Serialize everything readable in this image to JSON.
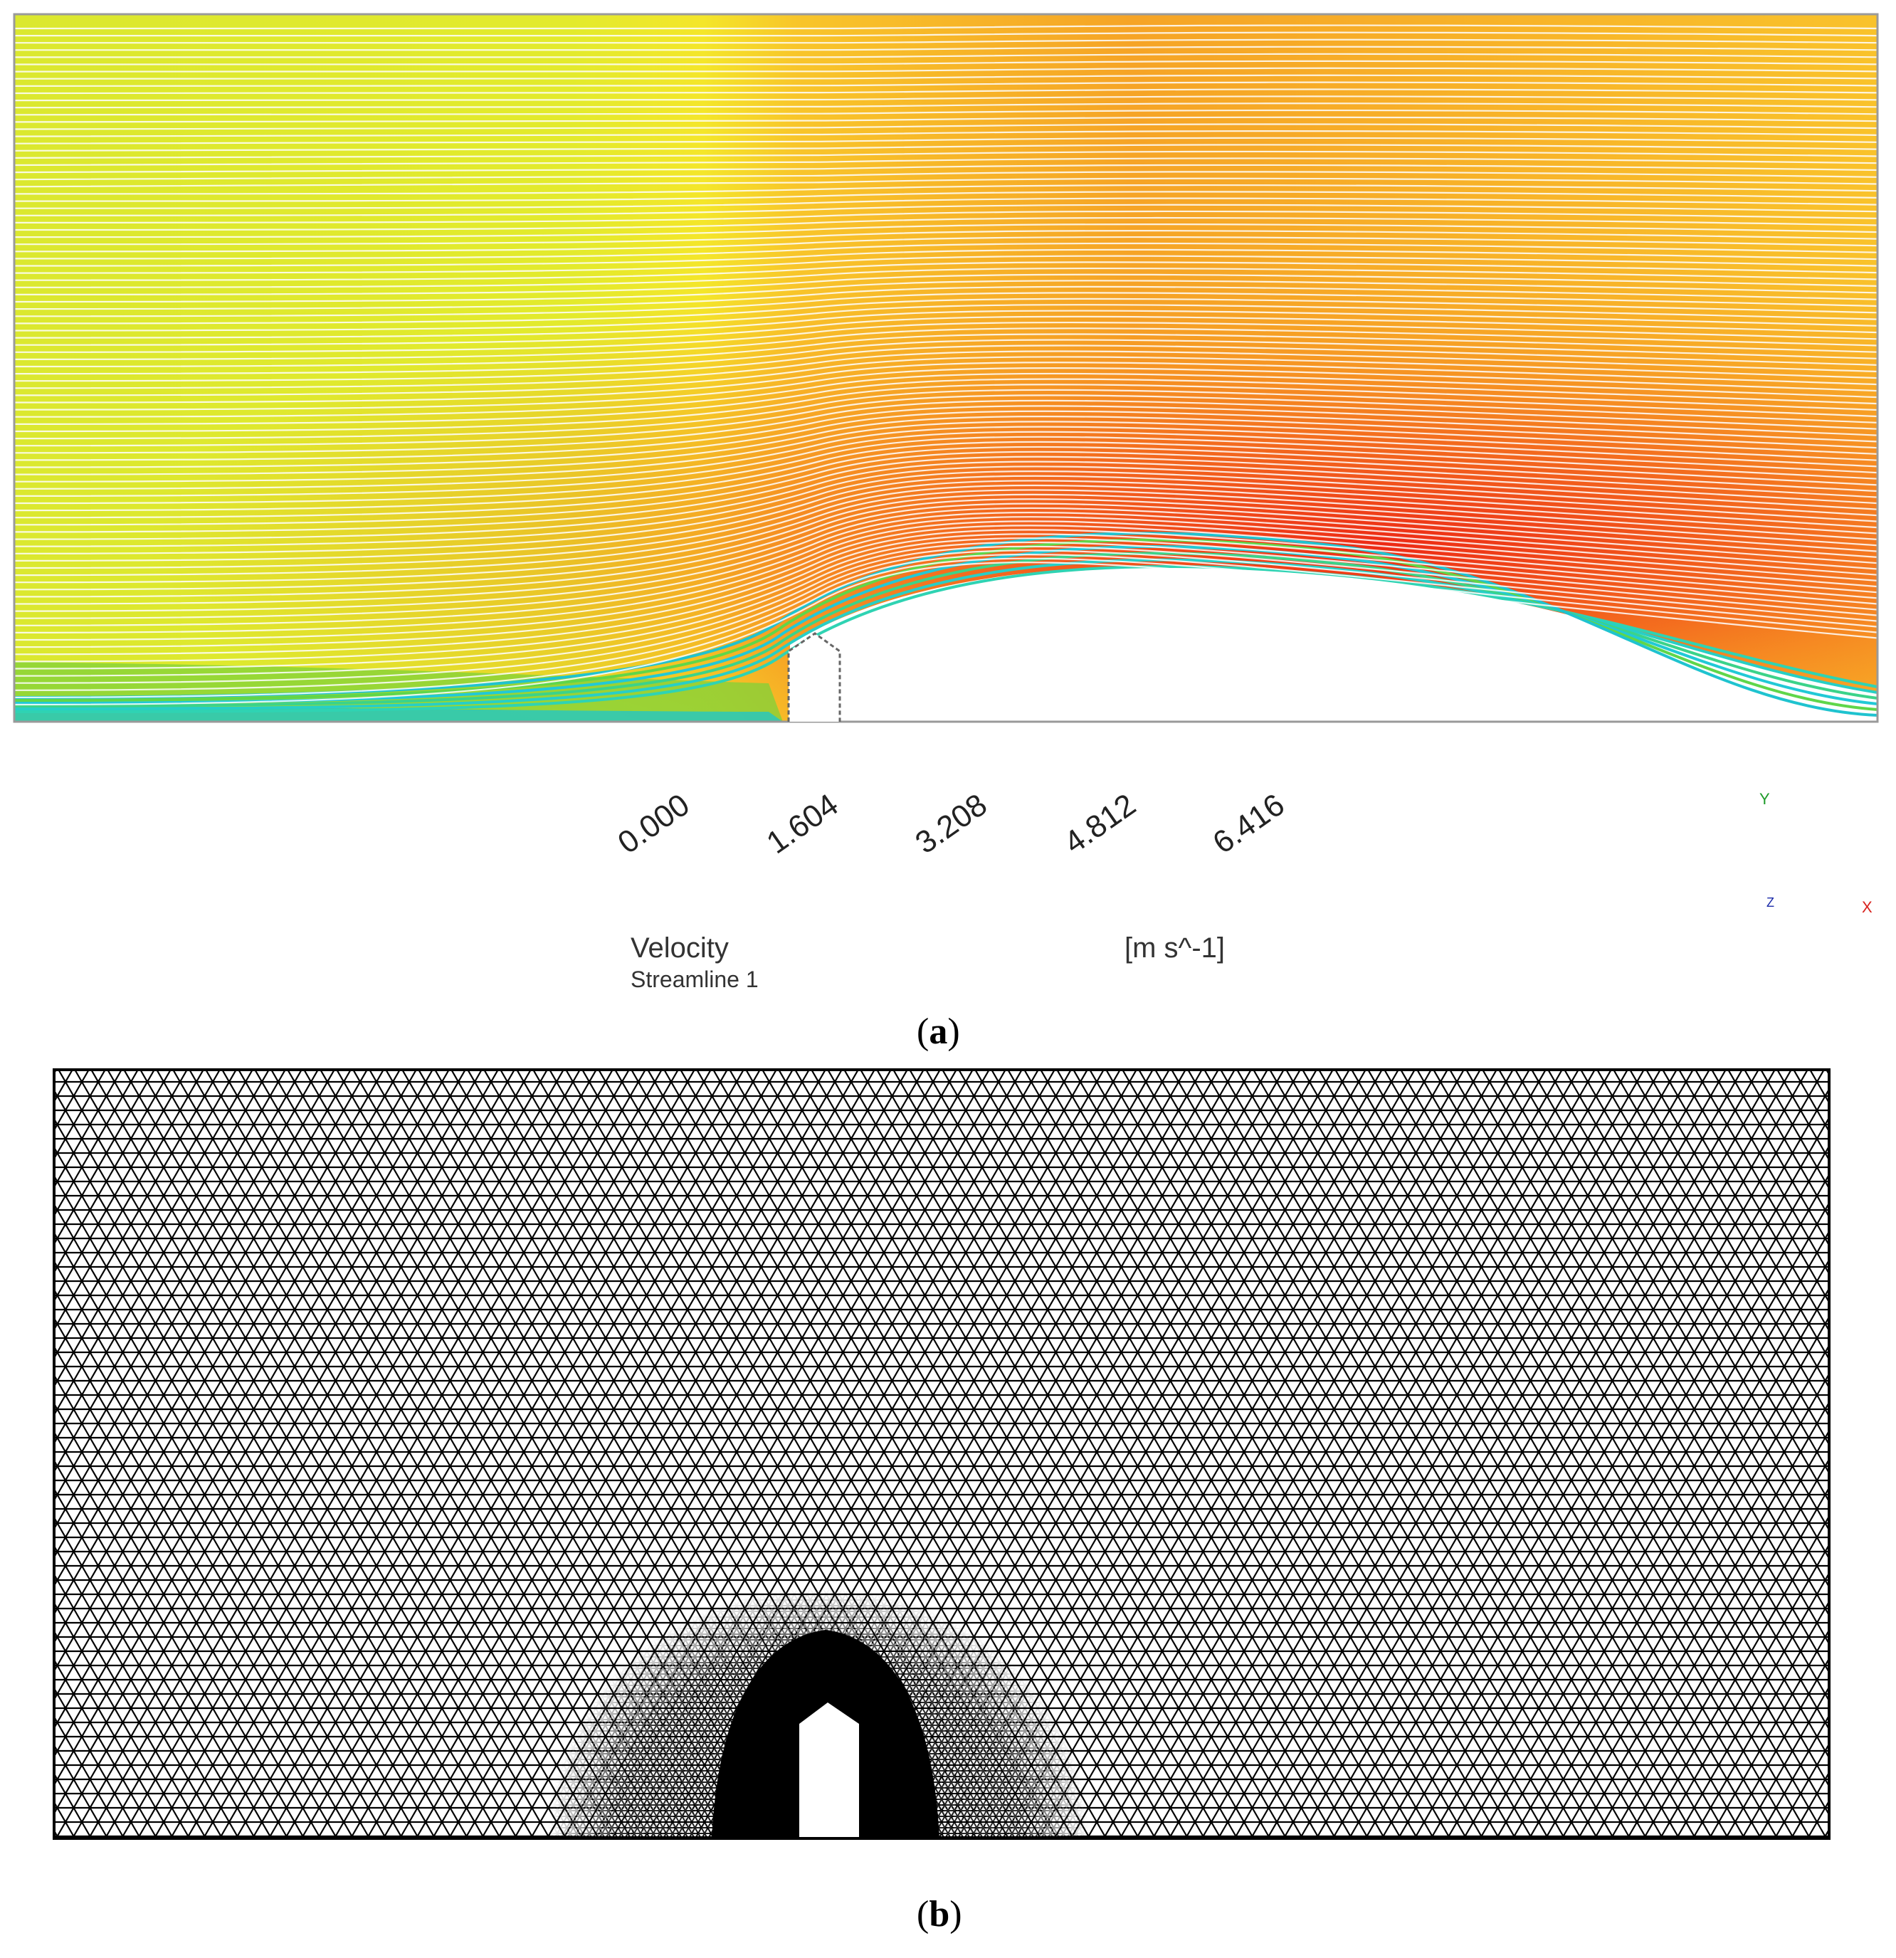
{
  "panel_a": {
    "caption_letter": "a",
    "legend": {
      "ticks": [
        "0.000",
        "1.604",
        "3.208",
        "4.812",
        "6.416"
      ],
      "variable": "Velocity",
      "object": "Streamline 1",
      "unit": "[m s^-1]",
      "min": 0.0,
      "max": 6.416
    },
    "axes_triad": {
      "y_label": "Y",
      "x_label": "X",
      "z_label": "Z"
    }
  },
  "panel_b": {
    "caption_letter": "b"
  }
}
